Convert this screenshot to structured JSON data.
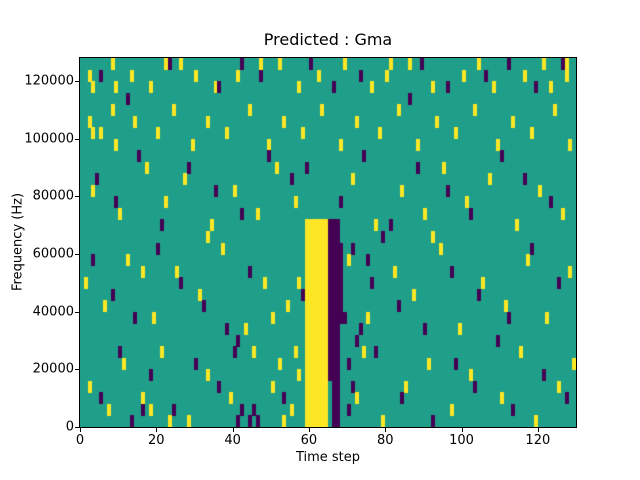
{
  "figure": {
    "title": "Predicted : Gma",
    "xlabel": "Time step",
    "ylabel": "Frequency (Hz)"
  },
  "chart_data": {
    "type": "heatmap",
    "title": "Predicted : Gma",
    "xlabel": "Time step",
    "ylabel": "Frequency (Hz)",
    "xlim": [
      0,
      130
    ],
    "ylim": [
      0,
      128000
    ],
    "x_ticks": [
      0,
      20,
      40,
      60,
      80,
      100,
      120
    ],
    "y_ticks": [
      0,
      20000,
      40000,
      60000,
      80000,
      100000,
      120000
    ],
    "grid": {
      "cols": 130,
      "rows": 32,
      "cell_freq_hz": 4000
    },
    "legend": "none",
    "gridlines": "off",
    "colors": {
      "background": "#1f9e89",
      "high": "#fde725",
      "low": "#440154"
    },
    "bands": [
      {
        "col0": 59,
        "col1": 64,
        "row0": 0,
        "row1": 17,
        "color": "high"
      },
      {
        "col0": 65,
        "col1": 67,
        "row0": 4,
        "row1": 17,
        "color": "low"
      },
      {
        "col0": 66,
        "col1": 67,
        "row0": 0,
        "row1": 3,
        "color": "low"
      },
      {
        "col0": 68,
        "col1": 68,
        "row0": 9,
        "row1": 15,
        "color": "low"
      }
    ],
    "high_cells": [
      [
        2,
        30
      ],
      [
        3,
        29
      ],
      [
        8,
        31
      ],
      [
        9,
        29
      ],
      [
        13,
        30
      ],
      [
        18,
        29
      ],
      [
        22,
        31
      ],
      [
        26,
        31
      ],
      [
        30,
        30
      ],
      [
        35,
        29
      ],
      [
        41,
        30
      ],
      [
        47,
        31
      ],
      [
        52,
        31
      ],
      [
        57,
        29
      ],
      [
        62,
        30
      ],
      [
        69,
        31
      ],
      [
        76,
        29
      ],
      [
        80,
        30
      ],
      [
        81,
        31
      ],
      [
        86,
        31
      ],
      [
        92,
        29
      ],
      [
        100,
        30
      ],
      [
        104,
        31
      ],
      [
        108,
        29
      ],
      [
        116,
        30
      ],
      [
        121,
        31
      ],
      [
        123,
        29
      ],
      [
        127,
        30
      ],
      [
        127,
        31
      ],
      [
        2,
        26
      ],
      [
        3,
        25
      ],
      [
        5,
        25
      ],
      [
        8,
        27
      ],
      [
        9,
        24
      ],
      [
        14,
        26
      ],
      [
        20,
        25
      ],
      [
        24,
        27
      ],
      [
        29,
        24
      ],
      [
        33,
        26
      ],
      [
        38,
        25
      ],
      [
        44,
        27
      ],
      [
        49,
        24
      ],
      [
        53,
        26
      ],
      [
        58,
        25
      ],
      [
        63,
        27
      ],
      [
        68,
        24
      ],
      [
        72,
        26
      ],
      [
        78,
        25
      ],
      [
        83,
        27
      ],
      [
        88,
        24
      ],
      [
        93,
        26
      ],
      [
        98,
        25
      ],
      [
        103,
        27
      ],
      [
        109,
        24
      ],
      [
        113,
        26
      ],
      [
        118,
        25
      ],
      [
        124,
        27
      ],
      [
        128,
        24
      ],
      [
        3,
        20
      ],
      [
        10,
        18
      ],
      [
        17,
        22
      ],
      [
        22,
        19
      ],
      [
        27,
        21
      ],
      [
        34,
        17
      ],
      [
        40,
        20
      ],
      [
        46,
        18
      ],
      [
        51,
        22
      ],
      [
        56,
        19
      ],
      [
        71,
        21
      ],
      [
        77,
        17
      ],
      [
        84,
        20
      ],
      [
        90,
        18
      ],
      [
        95,
        22
      ],
      [
        101,
        19
      ],
      [
        107,
        21
      ],
      [
        114,
        17
      ],
      [
        120,
        20
      ],
      [
        126,
        18
      ],
      [
        33,
        16
      ],
      [
        92,
        16
      ],
      [
        1,
        12
      ],
      [
        6,
        10
      ],
      [
        12,
        14
      ],
      [
        19,
        9
      ],
      [
        25,
        13
      ],
      [
        31,
        11
      ],
      [
        37,
        15
      ],
      [
        43,
        8
      ],
      [
        48,
        12
      ],
      [
        54,
        10
      ],
      [
        70,
        14
      ],
      [
        75,
        9
      ],
      [
        82,
        13
      ],
      [
        87,
        11
      ],
      [
        94,
        15
      ],
      [
        99,
        8
      ],
      [
        105,
        12
      ],
      [
        111,
        10
      ],
      [
        117,
        14
      ],
      [
        122,
        9
      ],
      [
        128,
        13
      ],
      [
        16,
        13
      ],
      [
        50,
        9
      ],
      [
        57,
        12
      ],
      [
        2,
        3
      ],
      [
        7,
        1
      ],
      [
        11,
        5
      ],
      [
        16,
        2
      ],
      [
        21,
        6
      ],
      [
        28,
        0
      ],
      [
        33,
        4
      ],
      [
        39,
        2
      ],
      [
        45,
        6
      ],
      [
        50,
        3
      ],
      [
        52,
        5
      ],
      [
        55,
        1
      ],
      [
        57,
        4
      ],
      [
        53,
        0
      ],
      [
        56,
        6
      ],
      [
        72,
        2
      ],
      [
        74,
        6
      ],
      [
        79,
        0
      ],
      [
        85,
        3
      ],
      [
        91,
        5
      ],
      [
        97,
        1
      ],
      [
        102,
        4
      ],
      [
        110,
        2
      ],
      [
        115,
        6
      ],
      [
        119,
        0
      ],
      [
        125,
        3
      ],
      [
        129,
        5
      ],
      [
        23,
        0
      ],
      [
        18,
        1
      ]
    ],
    "low_cells": [
      [
        5,
        30
      ],
      [
        12,
        28
      ],
      [
        23,
        31
      ],
      [
        36,
        29
      ],
      [
        47,
        30
      ],
      [
        60,
        31
      ],
      [
        66,
        29
      ],
      [
        73,
        30
      ],
      [
        89,
        31
      ],
      [
        96,
        29
      ],
      [
        106,
        30
      ],
      [
        112,
        31
      ],
      [
        119,
        29
      ],
      [
        126,
        31
      ],
      [
        86,
        28
      ],
      [
        42,
        31
      ],
      [
        4,
        21
      ],
      [
        9,
        19
      ],
      [
        15,
        23
      ],
      [
        21,
        17
      ],
      [
        28,
        22
      ],
      [
        35,
        20
      ],
      [
        42,
        18
      ],
      [
        49,
        23
      ],
      [
        55,
        21
      ],
      [
        68,
        19
      ],
      [
        74,
        23
      ],
      [
        81,
        17
      ],
      [
        88,
        22
      ],
      [
        96,
        20
      ],
      [
        102,
        18
      ],
      [
        110,
        23
      ],
      [
        116,
        21
      ],
      [
        123,
        19
      ],
      [
        79,
        16
      ],
      [
        59,
        22
      ],
      [
        3,
        14
      ],
      [
        8,
        11
      ],
      [
        14,
        9
      ],
      [
        20,
        15
      ],
      [
        26,
        12
      ],
      [
        32,
        10
      ],
      [
        38,
        8
      ],
      [
        44,
        13
      ],
      [
        58,
        11
      ],
      [
        69,
        9
      ],
      [
        71,
        15
      ],
      [
        76,
        12
      ],
      [
        83,
        10
      ],
      [
        90,
        8
      ],
      [
        97,
        13
      ],
      [
        104,
        11
      ],
      [
        112,
        9
      ],
      [
        118,
        15
      ],
      [
        125,
        12
      ],
      [
        73,
        8
      ],
      [
        75,
        14
      ],
      [
        5,
        2
      ],
      [
        10,
        6
      ],
      [
        13,
        0
      ],
      [
        16,
        1
      ],
      [
        18,
        4
      ],
      [
        24,
        1
      ],
      [
        30,
        5
      ],
      [
        36,
        3
      ],
      [
        40,
        6
      ],
      [
        41,
        7
      ],
      [
        41,
        0
      ],
      [
        42,
        1
      ],
      [
        44,
        0
      ],
      [
        45,
        1
      ],
      [
        46,
        0
      ],
      [
        53,
        2
      ],
      [
        70,
        1
      ],
      [
        70,
        5
      ],
      [
        71,
        3
      ],
      [
        72,
        7
      ],
      [
        77,
        6
      ],
      [
        84,
        2
      ],
      [
        92,
        0
      ],
      [
        98,
        5
      ],
      [
        103,
        3
      ],
      [
        109,
        7
      ],
      [
        113,
        1
      ],
      [
        121,
        4
      ],
      [
        127,
        2
      ]
    ]
  }
}
